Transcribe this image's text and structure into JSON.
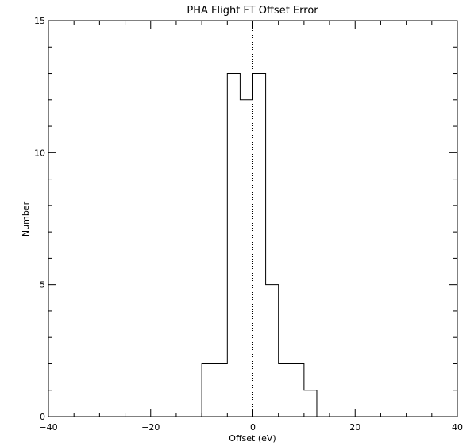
{
  "chart_data": {
    "type": "histogram",
    "title": "PHA Flight FT Offset Error",
    "xlabel": "Offset (eV)",
    "ylabel": "Number",
    "xlim": [
      -40,
      40
    ],
    "ylim": [
      0,
      15
    ],
    "x_ticks": [
      -40,
      -20,
      0,
      20,
      40
    ],
    "x_tick_labels": [
      "−40",
      "−20",
      "0",
      "20",
      "40"
    ],
    "y_ticks": [
      0,
      5,
      10,
      15
    ],
    "y_tick_labels": [
      "0",
      "5",
      "10",
      "15"
    ],
    "bin_edges": [
      -10,
      -5,
      -2.5,
      0,
      2.5,
      5,
      10,
      12.5
    ],
    "values": [
      2,
      13,
      12,
      13,
      5,
      2,
      1
    ],
    "reference_line_x": 0,
    "grid": false
  }
}
